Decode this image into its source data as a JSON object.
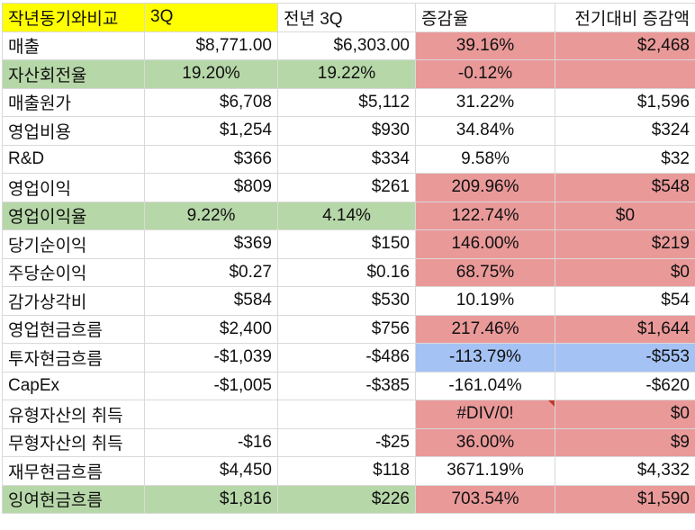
{
  "header": [
    "작년동기와비교",
    "3Q",
    "전년 3Q",
    "증감율",
    "전기대비 증감액"
  ],
  "rows": [
    [
      "매출",
      "$8,771.00",
      "$6,303.00",
      "39.16%",
      "$2,468"
    ],
    [
      "자산회전율",
      "19.20%",
      "19.22%",
      "-0.12%",
      ""
    ],
    [
      "매출원가",
      "$6,708",
      "$5,112",
      "31.22%",
      "$1,596"
    ],
    [
      "영업비용",
      "$1,254",
      "$930",
      "34.84%",
      "$324"
    ],
    [
      "R&D",
      "$366",
      "$334",
      "9.58%",
      "$32"
    ],
    [
      "영업이익",
      "$809",
      "$261",
      "209.96%",
      "$548"
    ],
    [
      "영업이익율",
      "9.22%",
      "4.14%",
      "122.74%",
      "$0"
    ],
    [
      "당기순이익",
      "$369",
      "$150",
      "146.00%",
      "$219"
    ],
    [
      "주당순이익",
      "$0.27",
      "$0.16",
      "68.75%",
      "$0"
    ],
    [
      "감가상각비",
      "$584",
      "$530",
      "10.19%",
      "$54"
    ],
    [
      "영업현금흐름",
      "$2,400",
      "$756",
      "217.46%",
      "$1,644"
    ],
    [
      "투자현금흐름",
      "-$1,039",
      "-$486",
      "-113.79%",
      "-$553"
    ],
    [
      "CapEx",
      "-$1,005",
      "-$385",
      "-161.04%",
      "-$620"
    ],
    [
      "유형자산의 취득",
      "",
      "",
      "#DIV/0!",
      "$0"
    ],
    [
      "무형자산의 취득",
      "-$16",
      "-$25",
      "36.00%",
      "$9"
    ],
    [
      "재무현금흐름",
      "$4,450",
      "$118",
      "3671.19%",
      "$4,332"
    ],
    [
      "잉여현금흐름",
      "$1,816",
      "$226",
      "703.54%",
      "$1,590"
    ]
  ],
  "colors": {
    "header_highlight": "#ffff00",
    "green_row": "#b6d7a8",
    "red_cell": "#ea9999",
    "blue_cell": "#a4c2f4",
    "grid_line": "#d9d9d9"
  }
}
